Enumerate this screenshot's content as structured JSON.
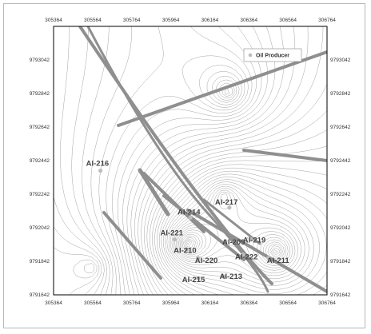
{
  "legend": {
    "label": "Oil Producer",
    "marker_color": "#bdbdbd"
  },
  "axes": {
    "x_ticks": [
      "305364",
      "305564",
      "305764",
      "305964",
      "306164",
      "306364",
      "306564",
      "306764"
    ],
    "y_ticks": [
      "9793042",
      "9792842",
      "9792642",
      "9792442",
      "9792242",
      "9792042",
      "9791842",
      "9791642"
    ],
    "x_range": [
      305364,
      306764
    ],
    "y_range": [
      9791642,
      9793242
    ]
  },
  "wells": [
    {
      "name": "AI-216",
      "x": 305604,
      "y": 9792382
    },
    {
      "name": "AI-217",
      "x": 306264,
      "y": 9792162
    },
    {
      "name": "AI-214",
      "x": 306064,
      "y": 9792102
    },
    {
      "name": "AI-221",
      "x": 305984,
      "y": 9791972
    },
    {
      "name": "AI-209",
      "x": 306244,
      "y": 9791962
    },
    {
      "name": "AI-219",
      "x": 306374,
      "y": 9791972
    },
    {
      "name": "AI-210",
      "x": 306044,
      "y": 9791912
    },
    {
      "name": "AI-222",
      "x": 306334,
      "y": 9791882
    },
    {
      "name": "AI-220",
      "x": 306104,
      "y": 9791862
    },
    {
      "name": "AI-211",
      "x": 306464,
      "y": 9791862
    },
    {
      "name": "AI-215",
      "x": 306104,
      "y": 9791742
    },
    {
      "name": "AI-213",
      "x": 306234,
      "y": 9791752
    }
  ],
  "colors": {
    "fault": "#8f8f8f",
    "contour": "#9a9a9a",
    "frame": "#000000"
  }
}
